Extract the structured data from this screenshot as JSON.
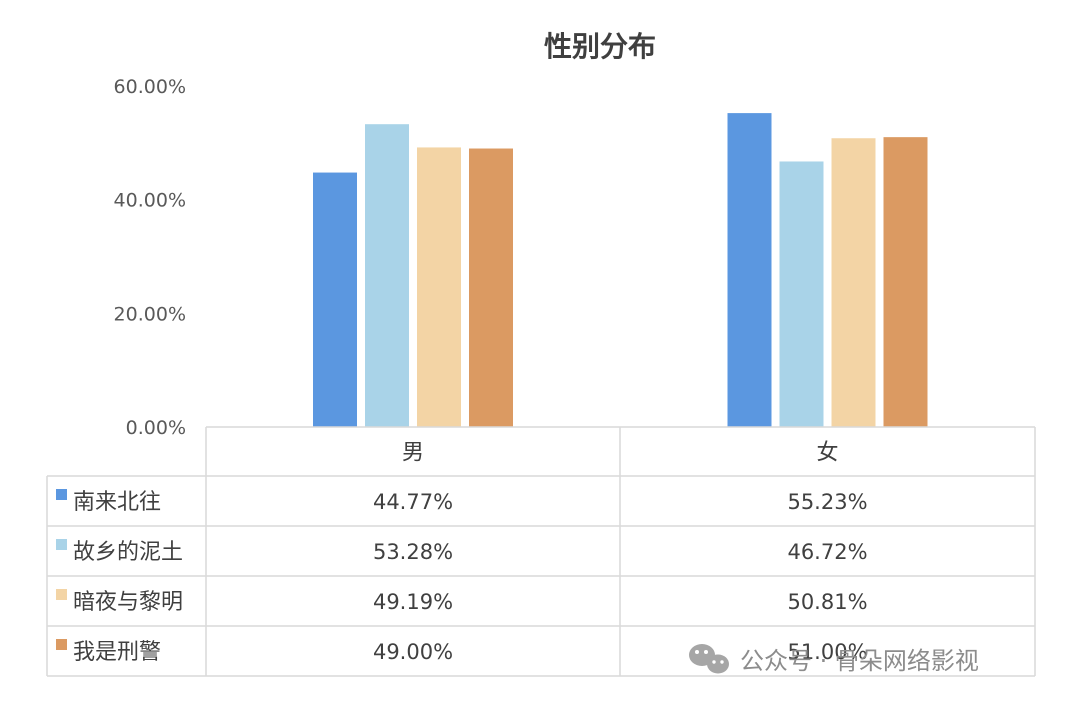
{
  "chart_data": {
    "type": "bar",
    "title": "性别分布",
    "categories": [
      "男",
      "女"
    ],
    "series": [
      {
        "name": "南来北往",
        "values": [
          44.77,
          55.23
        ],
        "labels": [
          "44.77%",
          "55.23%"
        ],
        "color": "#5b97e0"
      },
      {
        "name": "故乡的泥土",
        "values": [
          53.28,
          46.72
        ],
        "labels": [
          "53.28%",
          "46.72%"
        ],
        "color": "#a9d3e8"
      },
      {
        "name": "暗夜与黎明",
        "values": [
          49.19,
          50.81
        ],
        "labels": [
          "49.19%",
          "50.81%"
        ],
        "color": "#f3d4a5"
      },
      {
        "name": "我是刑警",
        "values": [
          49.0,
          51.0
        ],
        "labels": [
          "49.00%",
          "51.00%"
        ],
        "color": "#db9a62"
      }
    ],
    "ylim": [
      0,
      60
    ],
    "yticks": [
      0,
      20,
      40,
      60
    ],
    "ytick_labels": [
      "0.00%",
      "20.00%",
      "40.00%",
      "60.00%"
    ],
    "legend": "data-table",
    "grid": false
  },
  "watermark": {
    "text": "公众号 · 骨朵网络影视",
    "icon": "wechat-icon"
  }
}
